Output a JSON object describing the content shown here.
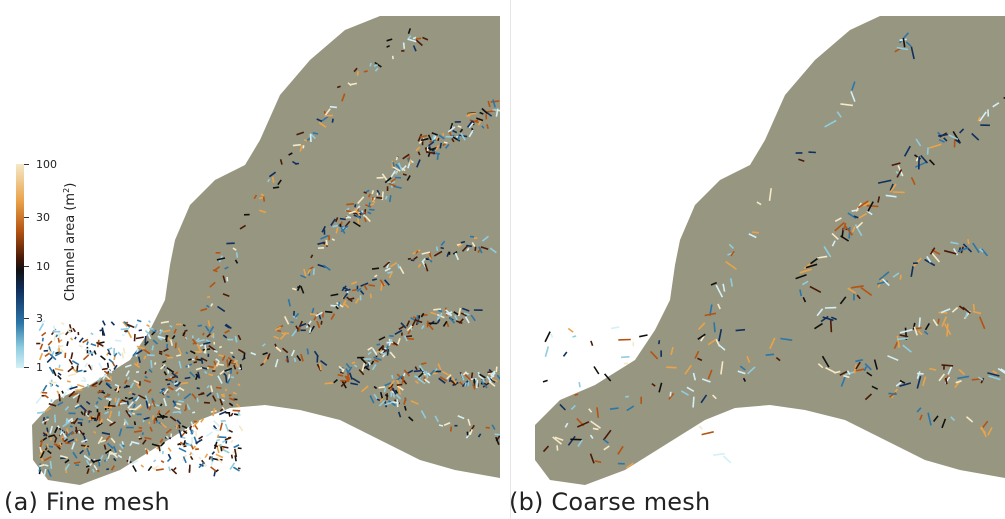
{
  "panels": [
    {
      "caption": "(a) Fine mesh"
    },
    {
      "caption": "(b) Coarse mesh"
    }
  ],
  "colorbar": {
    "title": "Channel area (m",
    "title_sup": "2",
    "title_close": ")",
    "ticks": [
      "100",
      "30",
      "10",
      "3",
      "1"
    ],
    "colormap": [
      "#d4f0f6",
      "#8fcde0",
      "#2b76a8",
      "#0f2f5e",
      "#101010",
      "#4a1a08",
      "#b45312",
      "#eaa34a",
      "#f4e9c8"
    ]
  },
  "colors": {
    "mesh": "#979680",
    "background": "#ffffff"
  }
}
